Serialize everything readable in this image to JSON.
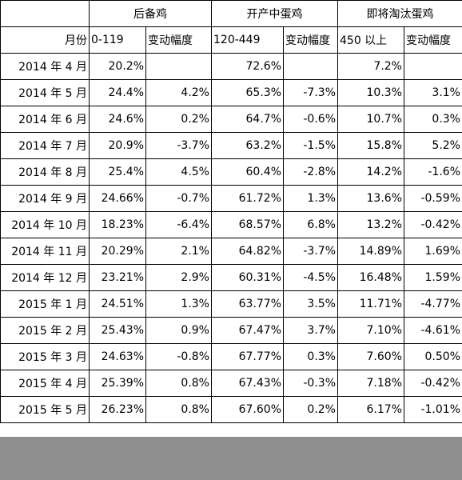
{
  "header": {
    "groups": [
      "后备鸡",
      "开产中蛋鸡",
      "即将淘汰蛋鸡"
    ],
    "month_label": "月份",
    "ranges": [
      "0-119",
      "120-449",
      "450 以上"
    ],
    "change_label": "变动幅度"
  },
  "rows": [
    {
      "month": "2014 年 4 月",
      "c": [
        "20.2%",
        "",
        "72.6%",
        "",
        "7.2%",
        ""
      ]
    },
    {
      "month": "2014 年 5 月",
      "c": [
        "24.4%",
        "4.2%",
        "65.3%",
        "-7.3%",
        "10.3%",
        "3.1%"
      ]
    },
    {
      "month": "2014 年 6 月",
      "c": [
        "24.6%",
        "0.2%",
        "64.7%",
        "-0.6%",
        "10.7%",
        "0.3%"
      ]
    },
    {
      "month": "2014 年 7 月",
      "c": [
        "20.9%",
        "-3.7%",
        "63.2%",
        "-1.5%",
        "15.8%",
        "5.2%"
      ]
    },
    {
      "month": "2014 年 8 月",
      "c": [
        "25.4%",
        "4.5%",
        "60.4%",
        "-2.8%",
        "14.2%",
        "-1.6%"
      ]
    },
    {
      "month": "2014 年 9 月",
      "c": [
        "24.66%",
        "-0.7%",
        "61.72%",
        "1.3%",
        "13.6%",
        "-0.59%"
      ]
    },
    {
      "month": "2014 年 10 月",
      "c": [
        "18.23%",
        "-6.4%",
        "68.57%",
        "6.8%",
        "13.2%",
        "-0.42%"
      ]
    },
    {
      "month": "2014 年 11 月",
      "c": [
        "20.29%",
        "2.1%",
        "64.82%",
        "-3.7%",
        "14.89%",
        "1.69%"
      ]
    },
    {
      "month": "2014 年 12 月",
      "c": [
        "23.21%",
        "2.9%",
        "60.31%",
        "-4.5%",
        "16.48%",
        "1.59%"
      ]
    },
    {
      "month": "2015 年 1 月",
      "c": [
        "24.51%",
        "1.3%",
        "63.77%",
        "3.5%",
        "11.71%",
        "-4.77%"
      ]
    },
    {
      "month": "2015 年 2 月",
      "c": [
        "25.43%",
        "0.9%",
        "67.47%",
        "3.7%",
        "7.10%",
        "-4.61%"
      ]
    },
    {
      "month": "2015 年 3 月",
      "c": [
        "24.63%",
        "-0.8%",
        "67.77%",
        "0.3%",
        "7.60%",
        "0.50%"
      ]
    },
    {
      "month": "2015 年 4 月",
      "c": [
        "25.39%",
        "0.8%",
        "67.43%",
        "-0.3%",
        "7.18%",
        "-0.42%"
      ]
    },
    {
      "month": "2015 年 5 月",
      "c": [
        "26.23%",
        "0.8%",
        "67.60%",
        "0.2%",
        "6.17%",
        "-1.01%"
      ]
    }
  ]
}
